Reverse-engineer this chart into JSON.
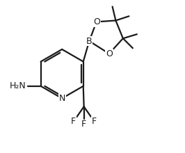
{
  "bg_color": "#ffffff",
  "line_color": "#1a1a1a",
  "line_width": 1.6,
  "font_size": 9.0,
  "figsize": [
    2.66,
    2.2
  ],
  "dpi": 100,
  "xlim": [
    -0.05,
    1.05
  ],
  "ylim": [
    -0.12,
    1.02
  ]
}
